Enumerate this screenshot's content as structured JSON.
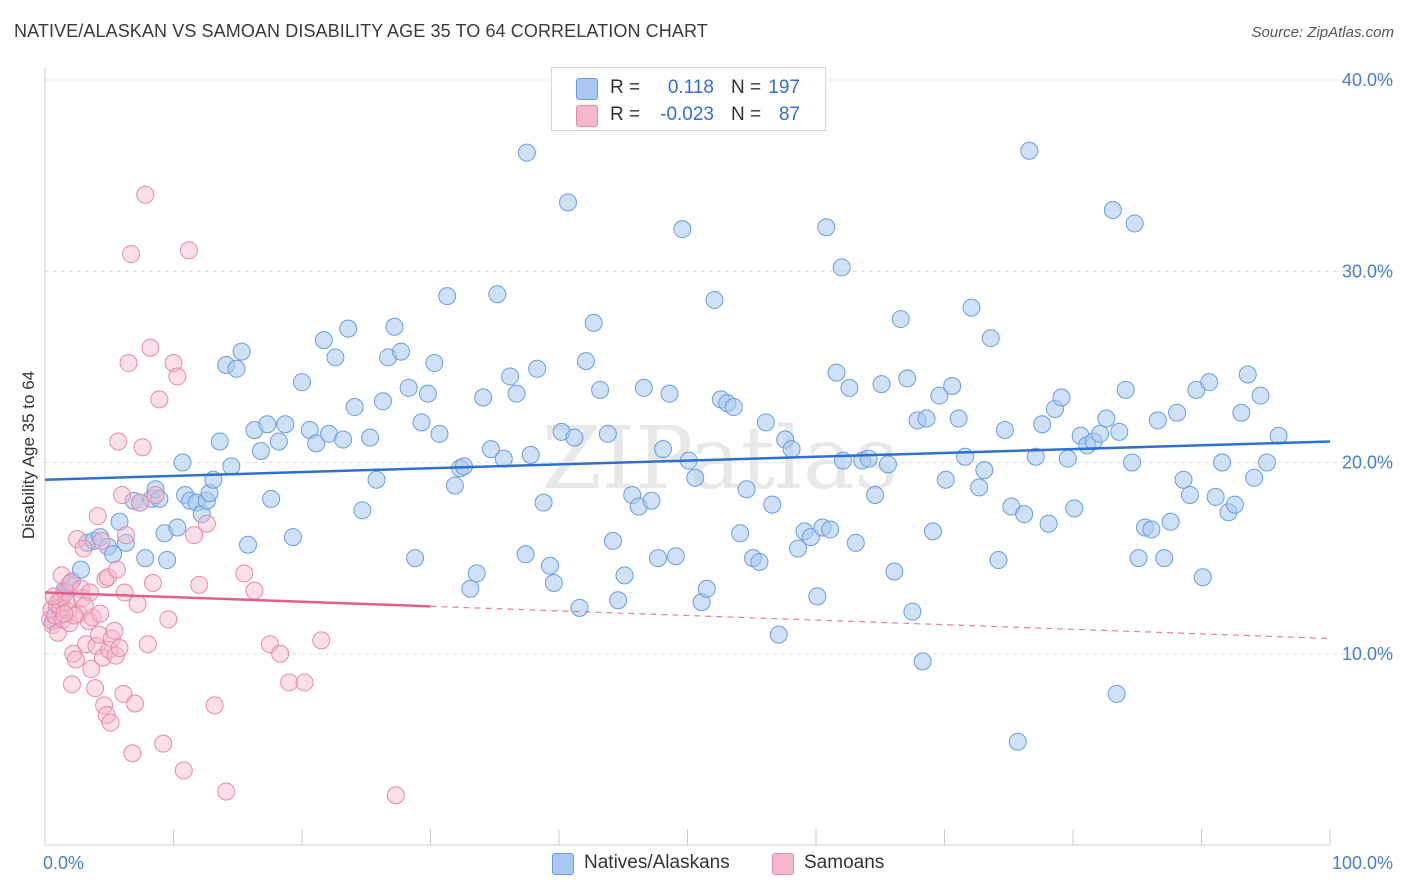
{
  "title": "NATIVE/ALASKAN VS SAMOAN DISABILITY AGE 35 TO 64 CORRELATION CHART",
  "source": "Source: ZipAtlas.com",
  "watermark": "ZIPatlas",
  "colors": {
    "blue_fill": "#a8c8f0",
    "blue_stroke": "#6a9ee0",
    "blue_line": "#2f6fd1",
    "pink_fill": "#f5b8cb",
    "pink_stroke": "#e88aa8",
    "pink_line": "#e0608a",
    "tick_color": "#4a7ec9",
    "grid": "#dddddd"
  },
  "legend": {
    "rows": [
      {
        "r_label": "R =",
        "r_value": "0.118",
        "n_label": "N =",
        "n_value": "197"
      },
      {
        "r_label": "R =",
        "r_value": "-0.023",
        "n_label": "N =",
        "n_value": "87"
      }
    ]
  },
  "bottom_legend": {
    "blue_label": "Natives/Alaskans",
    "pink_label": "Samoans"
  },
  "chart_data": {
    "type": "scatter",
    "title": "NATIVE/ALASKAN VS SAMOAN DISABILITY AGE 35 TO 64 CORRELATION CHART",
    "xlabel": "",
    "ylabel": "Disability Age 35 to 64",
    "xlim": [
      0,
      100
    ],
    "ylim": [
      0,
      40
    ],
    "x_tick_labels": [
      "0.0%",
      "100.0%"
    ],
    "y_ticks": [
      10,
      20,
      30,
      40
    ],
    "y_tick_labels": [
      "10.0%",
      "20.0%",
      "30.0%",
      "40.0%"
    ],
    "grid": "horizontal dashed",
    "legend_position": "top-center",
    "series": [
      {
        "name": "Natives/Alaskans",
        "color": "#a8c8f0",
        "r": 0.118,
        "n": 197,
        "trend": {
          "x0": 0,
          "y0": 19.1,
          "x1": 100,
          "y1": 21.1
        },
        "points": [
          [
            0.6,
            11.7
          ],
          [
            0.9,
            12.4
          ],
          [
            1.2,
            12.0
          ],
          [
            1.5,
            13.3
          ],
          [
            1.3,
            12.9
          ],
          [
            1.9,
            13.6
          ],
          [
            2.1,
            13.8
          ],
          [
            2.8,
            14.4
          ],
          [
            3.3,
            15.8
          ],
          [
            3.8,
            15.9
          ],
          [
            4.3,
            16.1
          ],
          [
            4.9,
            15.6
          ],
          [
            5.3,
            15.2
          ],
          [
            5.8,
            16.9
          ],
          [
            6.3,
            15.8
          ],
          [
            6.9,
            18.0
          ],
          [
            7.4,
            17.9
          ],
          [
            7.8,
            15.0
          ],
          [
            8.3,
            18.1
          ],
          [
            8.6,
            18.6
          ],
          [
            8.9,
            18.1
          ],
          [
            9.3,
            16.3
          ],
          [
            9.5,
            14.9
          ],
          [
            10.3,
            16.6
          ],
          [
            10.7,
            20.0
          ],
          [
            10.9,
            18.3
          ],
          [
            11.3,
            18.0
          ],
          [
            11.8,
            17.9
          ],
          [
            12.2,
            17.3
          ],
          [
            12.6,
            18.0
          ],
          [
            12.8,
            18.4
          ],
          [
            13.1,
            19.1
          ],
          [
            13.6,
            21.1
          ],
          [
            14.1,
            25.1
          ],
          [
            14.5,
            19.8
          ],
          [
            14.9,
            24.9
          ],
          [
            15.3,
            25.8
          ],
          [
            15.8,
            15.7
          ],
          [
            16.3,
            21.7
          ],
          [
            16.8,
            20.6
          ],
          [
            17.3,
            22.0
          ],
          [
            17.6,
            18.1
          ],
          [
            18.2,
            21.1
          ],
          [
            18.7,
            22.0
          ],
          [
            19.3,
            16.1
          ],
          [
            20.0,
            24.2
          ],
          [
            20.6,
            21.7
          ],
          [
            21.1,
            21.0
          ],
          [
            21.7,
            26.4
          ],
          [
            22.1,
            21.5
          ],
          [
            22.6,
            25.5
          ],
          [
            23.2,
            21.2
          ],
          [
            23.6,
            27.0
          ],
          [
            24.1,
            22.9
          ],
          [
            24.7,
            17.5
          ],
          [
            25.3,
            21.3
          ],
          [
            25.8,
            19.1
          ],
          [
            26.3,
            23.2
          ],
          [
            26.7,
            25.5
          ],
          [
            27.2,
            27.1
          ],
          [
            27.7,
            25.8
          ],
          [
            28.3,
            23.9
          ],
          [
            28.8,
            15.0
          ],
          [
            29.3,
            22.1
          ],
          [
            29.8,
            23.6
          ],
          [
            30.3,
            25.2
          ],
          [
            30.7,
            21.5
          ],
          [
            31.3,
            28.7
          ],
          [
            31.9,
            18.8
          ],
          [
            32.3,
            19.7
          ],
          [
            32.6,
            19.8
          ],
          [
            33.1,
            13.4
          ],
          [
            33.6,
            14.2
          ],
          [
            34.1,
            23.4
          ],
          [
            34.7,
            20.7
          ],
          [
            35.2,
            28.8
          ],
          [
            35.7,
            20.2
          ],
          [
            36.2,
            24.5
          ],
          [
            36.7,
            23.6
          ],
          [
            37.4,
            15.2
          ],
          [
            37.8,
            20.4
          ],
          [
            38.3,
            24.9
          ],
          [
            38.8,
            17.9
          ],
          [
            39.3,
            14.6
          ],
          [
            39.6,
            13.7
          ],
          [
            40.2,
            21.6
          ],
          [
            40.7,
            33.6
          ],
          [
            41.2,
            21.3
          ],
          [
            41.6,
            12.4
          ],
          [
            42.1,
            25.3
          ],
          [
            42.7,
            27.3
          ],
          [
            43.2,
            23.8
          ],
          [
            43.8,
            21.5
          ],
          [
            44.2,
            15.9
          ],
          [
            44.6,
            12.8
          ],
          [
            45.1,
            14.1
          ],
          [
            45.7,
            18.3
          ],
          [
            46.2,
            17.7
          ],
          [
            46.6,
            23.9
          ],
          [
            47.2,
            18.0
          ],
          [
            47.7,
            15.0
          ],
          [
            48.1,
            20.7
          ],
          [
            48.6,
            23.6
          ],
          [
            49.1,
            15.1
          ],
          [
            49.6,
            32.2
          ],
          [
            50.1,
            20.1
          ],
          [
            50.6,
            19.2
          ],
          [
            51.1,
            12.7
          ],
          [
            51.5,
            13.4
          ],
          [
            52.1,
            28.5
          ],
          [
            52.6,
            23.3
          ],
          [
            53.1,
            23.1
          ],
          [
            53.6,
            22.9
          ],
          [
            54.1,
            16.3
          ],
          [
            54.6,
            18.6
          ],
          [
            55.1,
            15.0
          ],
          [
            55.6,
            14.8
          ],
          [
            56.1,
            22.1
          ],
          [
            56.6,
            17.8
          ],
          [
            57.1,
            11.0
          ],
          [
            57.6,
            21.2
          ],
          [
            58.1,
            20.7
          ],
          [
            58.6,
            15.5
          ],
          [
            59.1,
            16.4
          ],
          [
            59.6,
            16.1
          ],
          [
            60.1,
            13.0
          ],
          [
            60.5,
            16.6
          ],
          [
            60.8,
            32.3
          ],
          [
            61.1,
            16.5
          ],
          [
            61.6,
            24.7
          ],
          [
            62.1,
            20.1
          ],
          [
            62.6,
            23.9
          ],
          [
            63.1,
            15.8
          ],
          [
            63.6,
            20.1
          ],
          [
            64.1,
            20.2
          ],
          [
            64.6,
            18.3
          ],
          [
            65.1,
            24.1
          ],
          [
            65.6,
            19.9
          ],
          [
            66.1,
            14.3
          ],
          [
            66.6,
            27.5
          ],
          [
            67.1,
            24.4
          ],
          [
            67.5,
            12.2
          ],
          [
            67.9,
            22.2
          ],
          [
            68.3,
            9.6
          ],
          [
            68.6,
            22.3
          ],
          [
            69.1,
            16.4
          ],
          [
            69.6,
            23.5
          ],
          [
            70.1,
            19.1
          ],
          [
            70.6,
            24.0
          ],
          [
            71.1,
            22.3
          ],
          [
            71.6,
            20.3
          ],
          [
            72.1,
            28.1
          ],
          [
            72.7,
            18.7
          ],
          [
            73.1,
            19.6
          ],
          [
            73.6,
            26.5
          ],
          [
            74.2,
            14.9
          ],
          [
            74.7,
            21.7
          ],
          [
            75.2,
            17.7
          ],
          [
            75.7,
            5.4
          ],
          [
            76.2,
            17.3
          ],
          [
            76.6,
            36.3
          ],
          [
            77.1,
            20.3
          ],
          [
            77.6,
            22.0
          ],
          [
            78.1,
            16.8
          ],
          [
            78.6,
            22.8
          ],
          [
            79.1,
            23.4
          ],
          [
            79.6,
            20.2
          ],
          [
            80.1,
            17.6
          ],
          [
            80.6,
            21.4
          ],
          [
            81.1,
            20.9
          ],
          [
            81.6,
            21.1
          ],
          [
            82.1,
            21.5
          ],
          [
            82.6,
            22.3
          ],
          [
            83.1,
            33.2
          ],
          [
            83.4,
            7.9
          ],
          [
            83.6,
            21.6
          ],
          [
            84.1,
            23.8
          ],
          [
            84.6,
            20.0
          ],
          [
            85.1,
            15.0
          ],
          [
            85.6,
            16.6
          ],
          [
            86.1,
            16.5
          ],
          [
            86.6,
            22.2
          ],
          [
            87.1,
            15.0
          ],
          [
            87.6,
            16.9
          ],
          [
            88.1,
            22.6
          ],
          [
            88.6,
            19.1
          ],
          [
            89.1,
            18.3
          ],
          [
            89.6,
            23.8
          ],
          [
            90.1,
            14.0
          ],
          [
            90.6,
            24.2
          ],
          [
            91.1,
            18.2
          ],
          [
            91.6,
            20.0
          ],
          [
            92.1,
            17.4
          ],
          [
            92.6,
            17.8
          ],
          [
            93.1,
            22.6
          ],
          [
            93.6,
            24.6
          ],
          [
            94.1,
            19.2
          ],
          [
            94.6,
            23.5
          ],
          [
            95.1,
            20.0
          ],
          [
            96.0,
            21.4
          ],
          [
            37.5,
            36.2
          ],
          [
            84.8,
            32.5
          ],
          [
            62.0,
            30.2
          ]
        ]
      },
      {
        "name": "Samoans",
        "color": "#f5b8cb",
        "r": -0.023,
        "n": 87,
        "trend": {
          "x0": 0,
          "y0": 13.2,
          "x1": 100,
          "y1": 10.8
        },
        "trend_solid_until_x": 30,
        "points": [
          [
            0.4,
            11.8
          ],
          [
            0.5,
            12.3
          ],
          [
            0.6,
            11.5
          ],
          [
            0.8,
            12.0
          ],
          [
            0.9,
            12.6
          ],
          [
            1.0,
            11.1
          ],
          [
            1.1,
            12.8
          ],
          [
            1.2,
            12.4
          ],
          [
            1.3,
            14.1
          ],
          [
            1.4,
            11.8
          ],
          [
            1.6,
            13.2
          ],
          [
            1.7,
            12.7
          ],
          [
            1.8,
            12.2
          ],
          [
            1.9,
            11.6
          ],
          [
            2.0,
            13.7
          ],
          [
            2.1,
            8.4
          ],
          [
            2.2,
            10.0
          ],
          [
            2.4,
            9.7
          ],
          [
            2.5,
            16.0
          ],
          [
            2.6,
            12.1
          ],
          [
            2.8,
            13.4
          ],
          [
            2.9,
            12.9
          ],
          [
            3.0,
            15.5
          ],
          [
            3.2,
            10.5
          ],
          [
            3.4,
            11.7
          ],
          [
            3.5,
            13.2
          ],
          [
            3.6,
            9.2
          ],
          [
            3.7,
            11.9
          ],
          [
            3.9,
            8.2
          ],
          [
            4.0,
            10.4
          ],
          [
            4.1,
            17.2
          ],
          [
            4.2,
            11.0
          ],
          [
            4.3,
            12.1
          ],
          [
            4.5,
            9.8
          ],
          [
            4.6,
            7.3
          ],
          [
            4.7,
            13.9
          ],
          [
            4.8,
            6.8
          ],
          [
            4.9,
            14.0
          ],
          [
            5.0,
            10.2
          ],
          [
            5.1,
            6.4
          ],
          [
            5.2,
            10.8
          ],
          [
            5.4,
            11.2
          ],
          [
            5.5,
            9.9
          ],
          [
            5.7,
            21.1
          ],
          [
            5.8,
            10.3
          ],
          [
            6.0,
            18.3
          ],
          [
            6.1,
            7.9
          ],
          [
            6.3,
            16.2
          ],
          [
            6.5,
            25.2
          ],
          [
            6.7,
            30.9
          ],
          [
            6.8,
            4.8
          ],
          [
            7.0,
            7.4
          ],
          [
            7.2,
            12.6
          ],
          [
            7.4,
            17.9
          ],
          [
            7.6,
            20.8
          ],
          [
            7.8,
            34.0
          ],
          [
            8.0,
            10.5
          ],
          [
            8.2,
            26.0
          ],
          [
            8.4,
            13.7
          ],
          [
            8.6,
            18.3
          ],
          [
            8.9,
            23.3
          ],
          [
            9.2,
            5.3
          ],
          [
            9.6,
            11.8
          ],
          [
            10.0,
            25.2
          ],
          [
            10.3,
            24.5
          ],
          [
            10.8,
            3.9
          ],
          [
            11.2,
            31.1
          ],
          [
            11.6,
            16.2
          ],
          [
            12.0,
            13.6
          ],
          [
            12.6,
            16.8
          ],
          [
            13.2,
            7.3
          ],
          [
            14.1,
            2.8
          ],
          [
            15.5,
            14.2
          ],
          [
            16.3,
            13.3
          ],
          [
            17.5,
            10.5
          ],
          [
            18.3,
            10.0
          ],
          [
            19.0,
            8.5
          ],
          [
            20.2,
            8.5
          ],
          [
            21.5,
            10.7
          ],
          [
            27.3,
            2.6
          ],
          [
            4.4,
            15.9
          ],
          [
            6.2,
            13.2
          ],
          [
            5.6,
            14.4
          ],
          [
            3.1,
            12.5
          ],
          [
            2.3,
            12.0
          ],
          [
            1.5,
            12.1
          ],
          [
            0.7,
            13.0
          ]
        ]
      }
    ]
  }
}
